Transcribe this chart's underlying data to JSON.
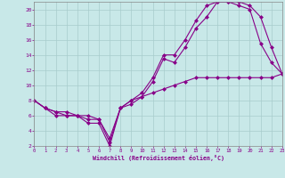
{
  "xlabel": "Windchill (Refroidissement éolien,°C)",
  "xlim": [
    0,
    23
  ],
  "ylim": [
    2,
    21
  ],
  "xticks": [
    0,
    1,
    2,
    3,
    4,
    5,
    6,
    7,
    8,
    9,
    10,
    11,
    12,
    13,
    14,
    15,
    16,
    17,
    18,
    19,
    20,
    21,
    22,
    23
  ],
  "yticks": [
    2,
    4,
    6,
    8,
    10,
    12,
    14,
    16,
    18,
    20
  ],
  "bg_color": "#c8e8e8",
  "grid_color": "#a8cccc",
  "line_color": "#880088",
  "line1_x": [
    0,
    1,
    2,
    3,
    4,
    5,
    6,
    7,
    8,
    9,
    10,
    11,
    12,
    13,
    14,
    15,
    16,
    17,
    18,
    19,
    20,
    21,
    22,
    23
  ],
  "line1_y": [
    8,
    7,
    6,
    6,
    6,
    5,
    5,
    2,
    7,
    7.5,
    8.5,
    10.5,
    13.5,
    13,
    15,
    17.5,
    19,
    21,
    21,
    20.5,
    20,
    15.5,
    13,
    11.5
  ],
  "line2_x": [
    0,
    1,
    2,
    3,
    4,
    5,
    6,
    7,
    8,
    9,
    10,
    11,
    12,
    13,
    14,
    15,
    16,
    17,
    18,
    19,
    20,
    21,
    22,
    23
  ],
  "line2_y": [
    8,
    7,
    6.5,
    6,
    6,
    5.5,
    5.5,
    2.5,
    7,
    8,
    9,
    11,
    14,
    14,
    16,
    18.5,
    20.5,
    21,
    21,
    21,
    20.5,
    19,
    15,
    11.5
  ],
  "line3_x": [
    0,
    1,
    2,
    3,
    4,
    5,
    6,
    7,
    8,
    9,
    10,
    11,
    12,
    13,
    14,
    15,
    16,
    17,
    18,
    19,
    20,
    21,
    22,
    23
  ],
  "line3_y": [
    8,
    7,
    6.5,
    6.5,
    6,
    6,
    5.5,
    3,
    7,
    8,
    8.5,
    9,
    9.5,
    10,
    10.5,
    11,
    11,
    11,
    11,
    11,
    11,
    11,
    11,
    11.5
  ]
}
